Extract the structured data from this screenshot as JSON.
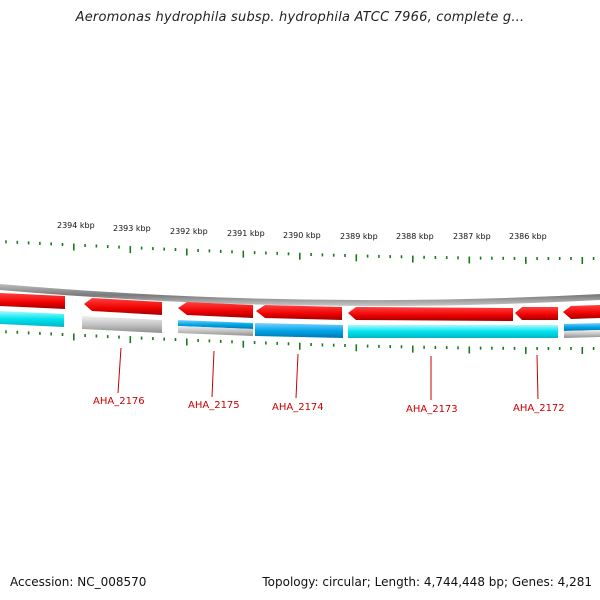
{
  "title": "Aeromonas hydrophila subsp. hydrophila ATCC 7966, complete g...",
  "footer": {
    "accession": "Accession: NC_008570",
    "summary": "Topology: circular; Length: 4,744,448 bp; Genes: 4,281"
  },
  "colors": {
    "gene_forward": "#ff0000",
    "gene_forward_shadow": "#b00000",
    "cds_cyan": "#00e5ee",
    "cds_blue": "#00a8e8",
    "cds_gray": "#c8c8c8",
    "backbone": "#888888",
    "tick": "#1a7a1a",
    "label": "#cc0000"
  },
  "ruler_labels": [
    "2394 kbp",
    "2393 kbp",
    "2392 kbp",
    "2391 kbp",
    "2390 kbp",
    "2389 kbp",
    "2388 kbp",
    "2387 kbp",
    "2386 kbp"
  ],
  "gene_labels": [
    "AHA_2176",
    "AHA_2175",
    "AHA_2174",
    "AHA_2173",
    "AHA_2172"
  ]
}
